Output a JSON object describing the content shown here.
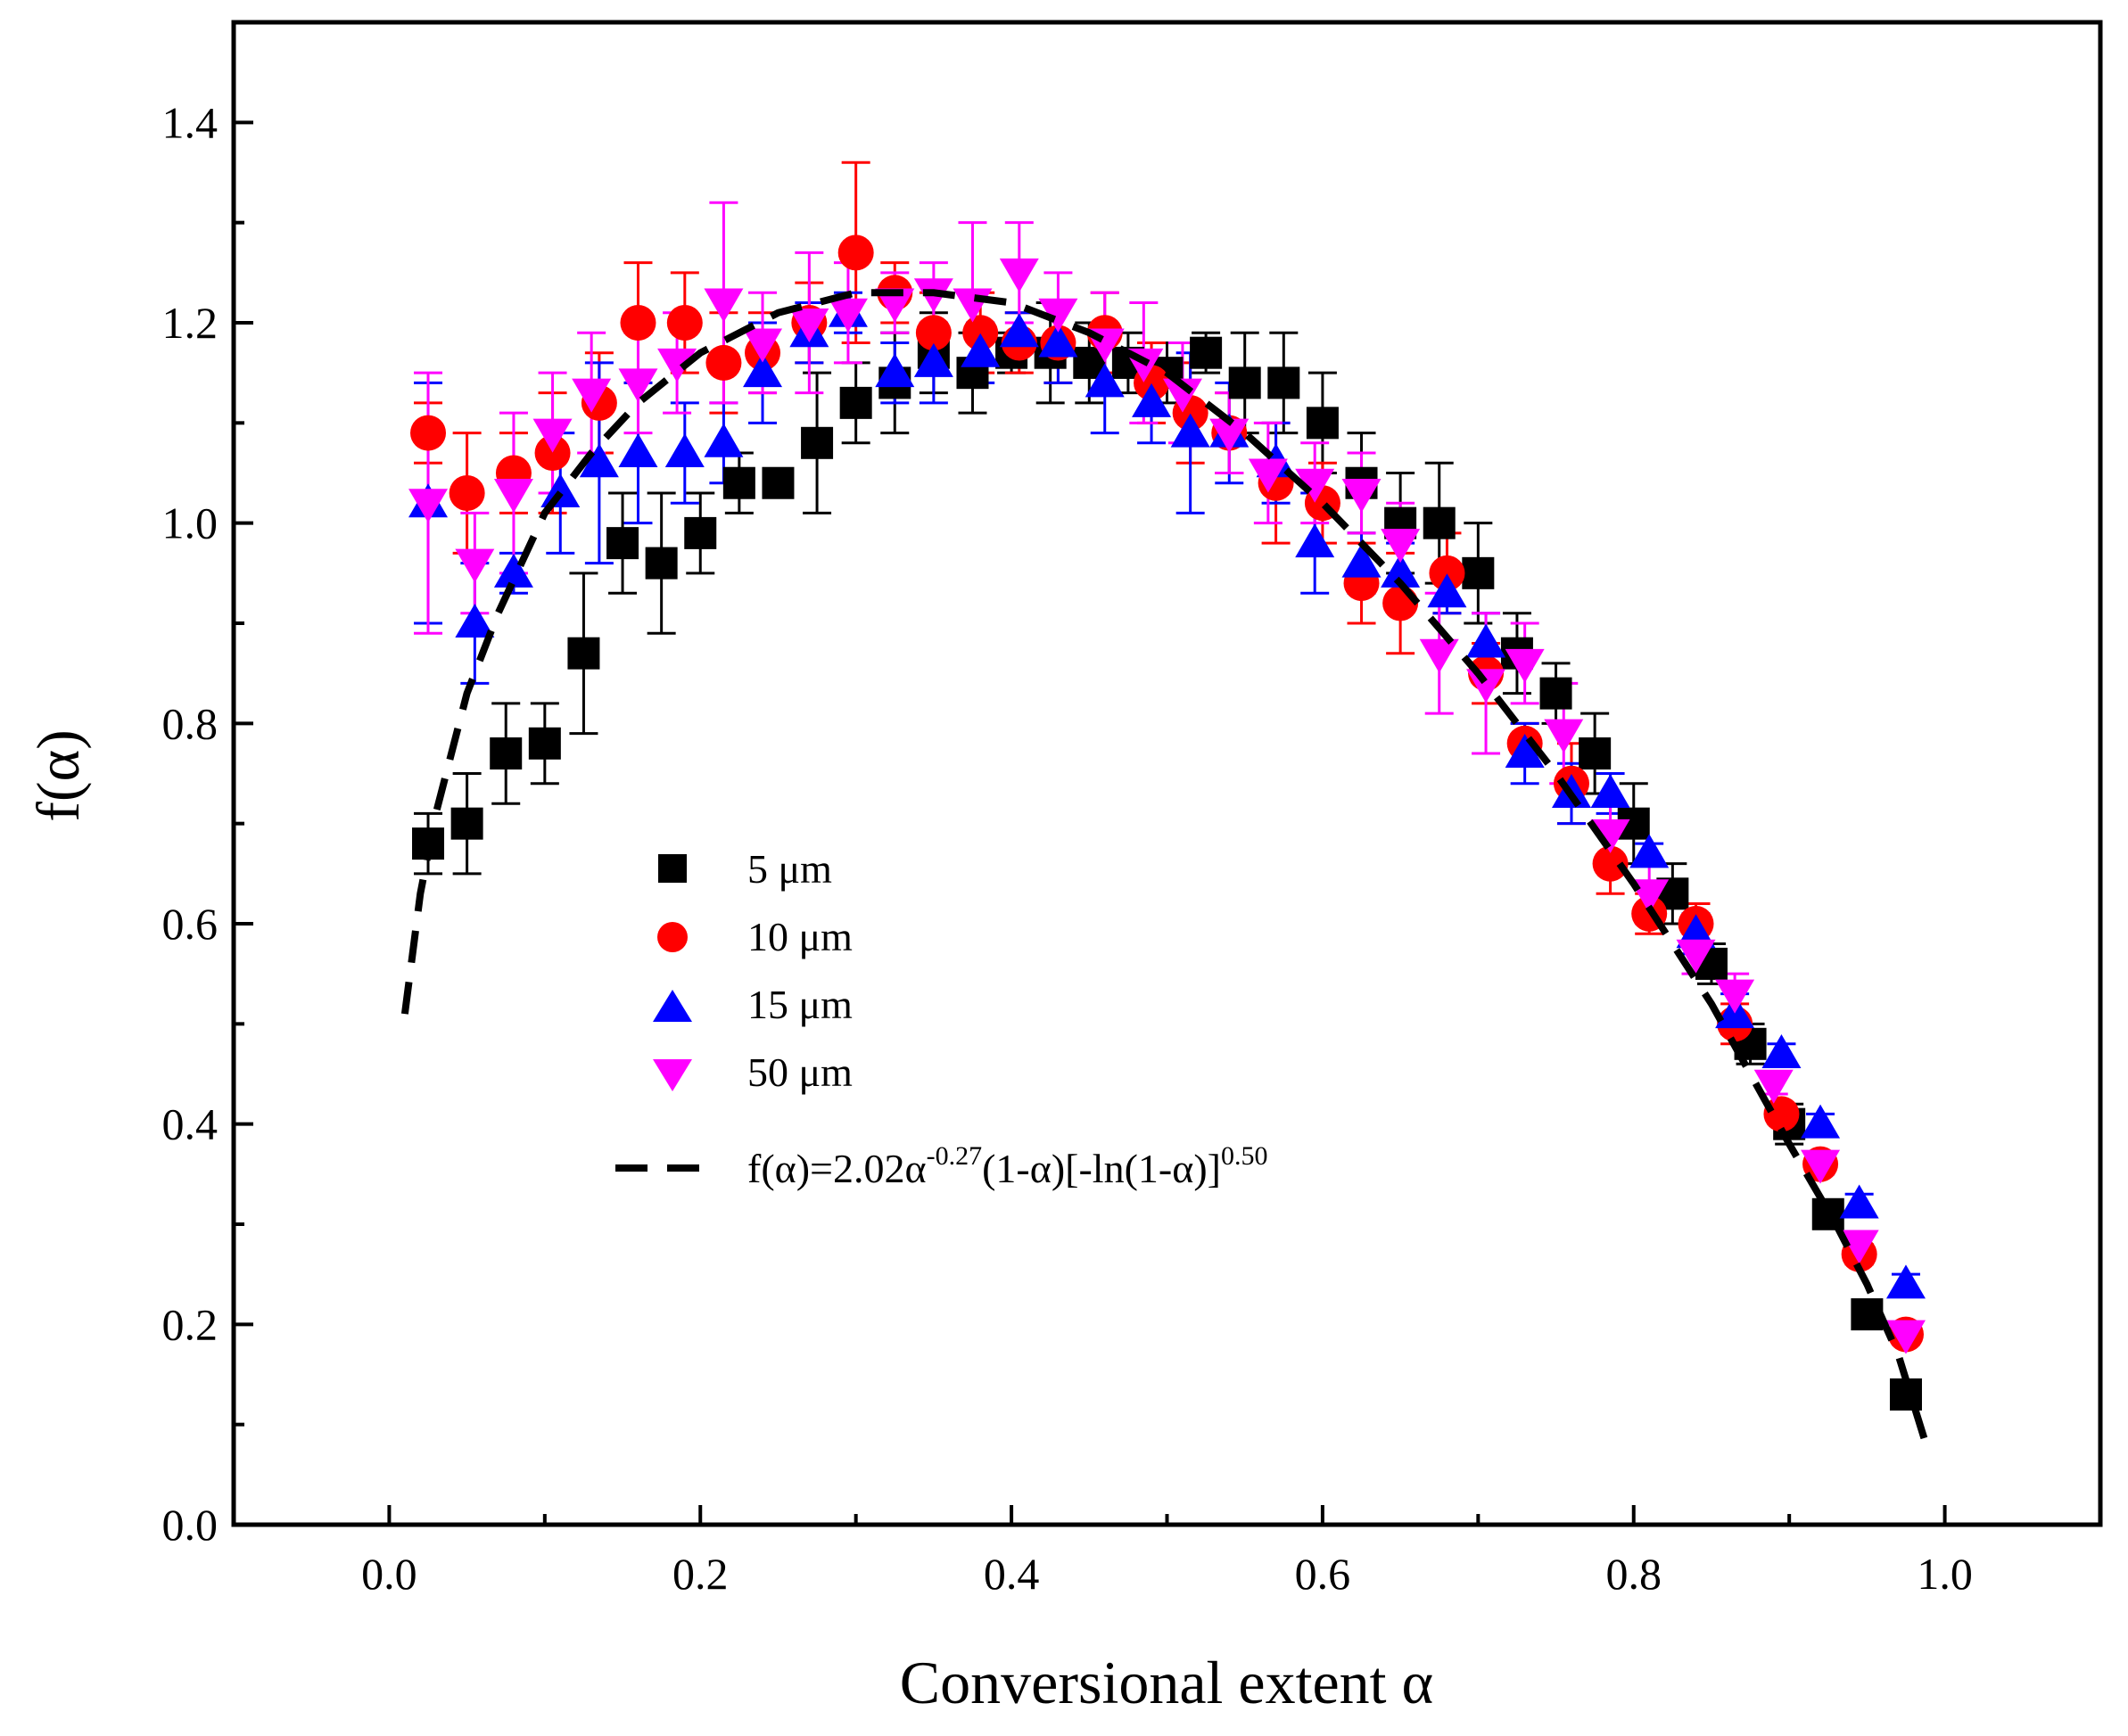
{
  "chart_data": {
    "type": "scatter",
    "xlabel": "Conversional extent  α",
    "ylabel": "f(α)",
    "xlim": [
      -0.1,
      1.1
    ],
    "ylim": [
      0.0,
      1.5
    ],
    "xticks": [
      "0.0",
      "0.2",
      "0.4",
      "0.6",
      "0.8",
      "1.0"
    ],
    "yticks": [
      "0.0",
      "0.2",
      "0.4",
      "0.6",
      "0.8",
      "1.0",
      "1.2",
      "1.4"
    ],
    "legend_position": "center-left",
    "series": [
      {
        "name": "5 μm",
        "marker": "square",
        "color": "#000000",
        "x": [
          0.025,
          0.05,
          0.075,
          0.1,
          0.125,
          0.15,
          0.175,
          0.2,
          0.225,
          0.25,
          0.275,
          0.3,
          0.325,
          0.35,
          0.375,
          0.4,
          0.425,
          0.45,
          0.475,
          0.5,
          0.525,
          0.55,
          0.575,
          0.6,
          0.625,
          0.65,
          0.675,
          0.7,
          0.725,
          0.75,
          0.775,
          0.8,
          0.825,
          0.85,
          0.875,
          0.9,
          0.925,
          0.95,
          0.975
        ],
        "y": [
          0.68,
          0.7,
          0.77,
          0.78,
          0.87,
          0.98,
          0.96,
          0.99,
          1.04,
          1.04,
          1.08,
          1.12,
          1.14,
          1.17,
          1.15,
          1.17,
          1.17,
          1.16,
          1.16,
          1.15,
          1.17,
          1.14,
          1.14,
          1.1,
          1.04,
          1.0,
          1.0,
          0.95,
          0.87,
          0.83,
          0.77,
          0.7,
          0.63,
          0.56,
          0.48,
          0.4,
          0.31,
          0.21,
          0.13
        ],
        "err": [
          0.03,
          0.05,
          0.05,
          0.04,
          0.08,
          0.05,
          0.07,
          0.04,
          0.03,
          0.0,
          0.07,
          0.04,
          0.05,
          0.04,
          0.04,
          0.02,
          0.05,
          0.04,
          0.03,
          0.03,
          0.02,
          0.05,
          0.05,
          0.05,
          0.05,
          0.05,
          0.06,
          0.05,
          0.04,
          0.03,
          0.04,
          0.04,
          0.03,
          0.02,
          0.02,
          0.02,
          0.01,
          0.01,
          0.01
        ]
      },
      {
        "name": "10 μm",
        "marker": "circle",
        "color": "#ff0000",
        "x": [
          0.025,
          0.05,
          0.08,
          0.105,
          0.135,
          0.16,
          0.19,
          0.215,
          0.24,
          0.27,
          0.3,
          0.325,
          0.35,
          0.38,
          0.405,
          0.43,
          0.46,
          0.49,
          0.515,
          0.54,
          0.57,
          0.6,
          0.625,
          0.65,
          0.68,
          0.705,
          0.73,
          0.76,
          0.785,
          0.81,
          0.84,
          0.865,
          0.895,
          0.92,
          0.945,
          0.975
        ],
        "y": [
          1.09,
          1.03,
          1.05,
          1.07,
          1.12,
          1.2,
          1.2,
          1.16,
          1.17,
          1.2,
          1.27,
          1.23,
          1.19,
          1.19,
          1.18,
          1.18,
          1.19,
          1.14,
          1.11,
          1.09,
          1.04,
          1.02,
          0.94,
          0.92,
          0.95,
          0.85,
          0.78,
          0.74,
          0.66,
          0.61,
          0.6,
          0.5,
          0.41,
          0.36,
          0.27,
          0.19
        ],
        "err": [
          0.03,
          0.06,
          0.04,
          0.06,
          0.05,
          0.06,
          0.05,
          0.05,
          0.04,
          0.04,
          0.09,
          0.03,
          0.04,
          0.04,
          0.03,
          0.04,
          0.04,
          0.04,
          0.05,
          0.04,
          0.06,
          0.04,
          0.04,
          0.05,
          0.04,
          0.03,
          0.02,
          0.04,
          0.03,
          0.02,
          0.02,
          0.02,
          0.01,
          0.01,
          0.01,
          0.01
        ]
      },
      {
        "name": "15 μm",
        "marker": "triangle-up",
        "color": "#0000ff",
        "x": [
          0.025,
          0.055,
          0.08,
          0.11,
          0.135,
          0.16,
          0.19,
          0.215,
          0.24,
          0.27,
          0.295,
          0.325,
          0.35,
          0.38,
          0.405,
          0.43,
          0.46,
          0.49,
          0.515,
          0.54,
          0.57,
          0.595,
          0.625,
          0.65,
          0.68,
          0.705,
          0.73,
          0.76,
          0.785,
          0.81,
          0.84,
          0.865,
          0.895,
          0.92,
          0.945,
          0.975
        ],
        "y": [
          1.02,
          0.9,
          0.95,
          1.03,
          1.06,
          1.07,
          1.07,
          1.08,
          1.15,
          1.19,
          1.21,
          1.15,
          1.16,
          1.17,
          1.19,
          1.18,
          1.14,
          1.12,
          1.09,
          1.09,
          1.06,
          0.98,
          0.96,
          0.95,
          0.93,
          0.88,
          0.77,
          0.73,
          0.73,
          0.67,
          0.59,
          0.51,
          0.47,
          0.4,
          0.32,
          0.24
        ],
        "err": [
          0.12,
          0.06,
          0.02,
          0.06,
          0.1,
          0.07,
          0.05,
          0.04,
          0.05,
          0.03,
          0.02,
          0.03,
          0.04,
          0.03,
          0.02,
          0.04,
          0.05,
          0.04,
          0.08,
          0.05,
          0.04,
          0.05,
          0.03,
          0.03,
          0.02,
          0.03,
          0.03,
          0.03,
          0.02,
          0.01,
          0.02,
          0.02,
          0.01,
          0.01,
          0.01,
          0.01
        ]
      },
      {
        "name": "50 μm",
        "marker": "triangle-down",
        "color": "#ff00ff",
        "x": [
          0.025,
          0.055,
          0.08,
          0.105,
          0.13,
          0.16,
          0.185,
          0.215,
          0.24,
          0.27,
          0.295,
          0.325,
          0.35,
          0.375,
          0.405,
          0.43,
          0.46,
          0.485,
          0.51,
          0.54,
          0.565,
          0.595,
          0.625,
          0.65,
          0.675,
          0.705,
          0.73,
          0.755,
          0.785,
          0.81,
          0.84,
          0.865,
          0.89,
          0.92,
          0.945,
          0.975
        ],
        "y": [
          1.02,
          0.96,
          1.03,
          1.09,
          1.13,
          1.14,
          1.16,
          1.22,
          1.18,
          1.2,
          1.21,
          1.22,
          1.23,
          1.22,
          1.25,
          1.21,
          1.18,
          1.16,
          1.13,
          1.09,
          1.05,
          1.04,
          1.03,
          0.98,
          0.87,
          0.84,
          0.86,
          0.79,
          0.69,
          0.63,
          0.57,
          0.53,
          0.44,
          0.36,
          0.28,
          0.19
        ],
        "err": [
          0.13,
          0.05,
          0.08,
          0.06,
          0.06,
          0.05,
          0.05,
          0.1,
          0.05,
          0.07,
          0.05,
          0.03,
          0.03,
          0.08,
          0.05,
          0.04,
          0.05,
          0.06,
          0.05,
          0.04,
          0.05,
          0.04,
          0.04,
          0.04,
          0.06,
          0.07,
          0.04,
          0.05,
          0.03,
          0.03,
          0.02,
          0.02,
          0.01,
          0.01,
          0.01,
          0.01
        ]
      },
      {
        "name": "f(α)=2.02α-0.27(1-α)[-ln(1-α)]0.50",
        "type": "line",
        "style": "dashed",
        "color": "#000000",
        "formula": {
          "A": 2.02,
          "m": -0.27,
          "n": 0.5
        },
        "x": [
          0.01,
          0.02,
          0.03,
          0.05,
          0.07,
          0.1,
          0.13,
          0.16,
          0.2,
          0.25,
          0.3,
          0.35,
          0.4,
          0.45,
          0.5,
          0.55,
          0.6,
          0.65,
          0.7,
          0.75,
          0.8,
          0.85,
          0.9,
          0.93,
          0.95,
          0.97,
          0.99
        ],
        "y": [
          0.51,
          0.63,
          0.71,
          0.83,
          0.91,
          1.01,
          1.07,
          1.12,
          1.17,
          1.21,
          1.23,
          1.23,
          1.22,
          1.19,
          1.15,
          1.09,
          1.02,
          0.94,
          0.85,
          0.75,
          0.64,
          0.52,
          0.38,
          0.3,
          0.24,
          0.17,
          0.07
        ]
      }
    ],
    "legend": {
      "items": [
        "5 μm",
        "10 μm",
        "15 μm",
        "50 μm"
      ],
      "fit_label": {
        "prefix": "f(α)=2.02α",
        "sup1": "-0.27",
        "middle": "(1-α)[-ln(1-α)]",
        "sup2": "0.50"
      }
    }
  }
}
